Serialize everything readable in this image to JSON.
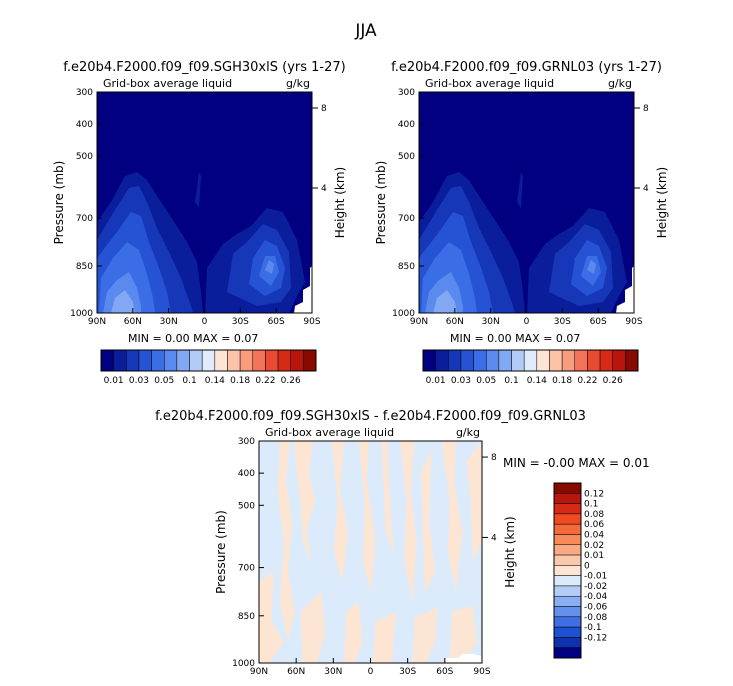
{
  "main_title": "JJA",
  "colors": {
    "plot_background": "#000080",
    "diff_background": "#dcebfb",
    "diff_positive": "#fde5d4"
  },
  "chart_data": [
    {
      "type": "contour",
      "title": "f.e20b4.F2000.f09_f09.SGH30xlS (yrs 1-27)",
      "field_label": "Grid-box average liquid",
      "units": "g/kg",
      "ylabel": "Pressure (mb)",
      "y2label": "Height (km)",
      "x_ticks": [
        "90N",
        "60N",
        "30N",
        "0",
        "30S",
        "60S",
        "90S"
      ],
      "y_ticks": [
        300,
        400,
        500,
        700,
        850,
        1000
      ],
      "ylim": [
        1000,
        300
      ],
      "height_ticks": [
        8,
        4
      ],
      "min_label": "MIN =",
      "min_value": "0.00",
      "max_label": "MAX =",
      "max_value": "0.07",
      "colorbar": {
        "colors": [
          "#000080",
          "#0a1e9c",
          "#1638b8",
          "#2653d4",
          "#3b6de6",
          "#5b8aee",
          "#83a8f3",
          "#b3cbf7",
          "#e0ebfb",
          "#fde4d4",
          "#fbc3a8",
          "#f79d7e",
          "#f2735a",
          "#e84a32",
          "#d62a16",
          "#b8150c",
          "#870a00"
        ],
        "labels": [
          "0.01",
          "0.03",
          "0.05",
          "0.1",
          "0.14",
          "0.18",
          "0.22",
          "0.26"
        ]
      }
    },
    {
      "type": "contour",
      "title": "f.e20b4.F2000.f09_f09.GRNL03 (yrs 1-27)",
      "field_label": "Grid-box average liquid",
      "units": "g/kg",
      "ylabel": "Pressure (mb)",
      "y2label": "Height (km)",
      "x_ticks": [
        "90N",
        "60N",
        "30N",
        "0",
        "30S",
        "60S",
        "90S"
      ],
      "y_ticks": [
        300,
        400,
        500,
        700,
        850,
        1000
      ],
      "ylim": [
        1000,
        300
      ],
      "height_ticks": [
        8,
        4
      ],
      "min_label": "MIN =",
      "min_value": "0.00",
      "max_label": "MAX =",
      "max_value": "0.07",
      "colorbar": {
        "colors": [
          "#000080",
          "#0a1e9c",
          "#1638b8",
          "#2653d4",
          "#3b6de6",
          "#5b8aee",
          "#83a8f3",
          "#b3cbf7",
          "#e0ebfb",
          "#fde4d4",
          "#fbc3a8",
          "#f79d7e",
          "#f2735a",
          "#e84a32",
          "#d62a16",
          "#b8150c",
          "#870a00"
        ],
        "labels": [
          "0.01",
          "0.03",
          "0.05",
          "0.1",
          "0.14",
          "0.18",
          "0.22",
          "0.26"
        ]
      }
    },
    {
      "type": "contour",
      "title": "f.e20b4.F2000.f09_f09.SGH30xlS - f.e20b4.F2000.f09_f09.GRNL03",
      "field_label": "Grid-box average liquid",
      "units": "g/kg",
      "ylabel": "Pressure (mb)",
      "y2label": "Height (km)",
      "x_ticks": [
        "90N",
        "60N",
        "30N",
        "0",
        "30S",
        "60S",
        "90S"
      ],
      "y_ticks": [
        300,
        400,
        500,
        700,
        850,
        1000
      ],
      "ylim": [
        1000,
        300
      ],
      "height_ticks": [
        8,
        4
      ],
      "min_label": "MIN =",
      "min_value": "-0.00",
      "max_label": "MAX =",
      "max_value": "0.01",
      "colorbar": {
        "colors": [
          "#870a00",
          "#b8150c",
          "#d62a16",
          "#f04a22",
          "#f56a3a",
          "#f78a5a",
          "#f9aa85",
          "#fbc8ac",
          "#fde4d4",
          "#dcebfb",
          "#b5cdf6",
          "#8aaef2",
          "#6590ec",
          "#3f6fe4",
          "#1f4fd2",
          "#0f31b0",
          "#000080"
        ],
        "labels": [
          "0.12",
          "0.1",
          "0.08",
          "0.06",
          "0.04",
          "0.02",
          "0.01",
          "0",
          "-0.01",
          "-0.02",
          "-0.04",
          "-0.06",
          "-0.08",
          "-0.1",
          "-0.12"
        ]
      }
    }
  ]
}
